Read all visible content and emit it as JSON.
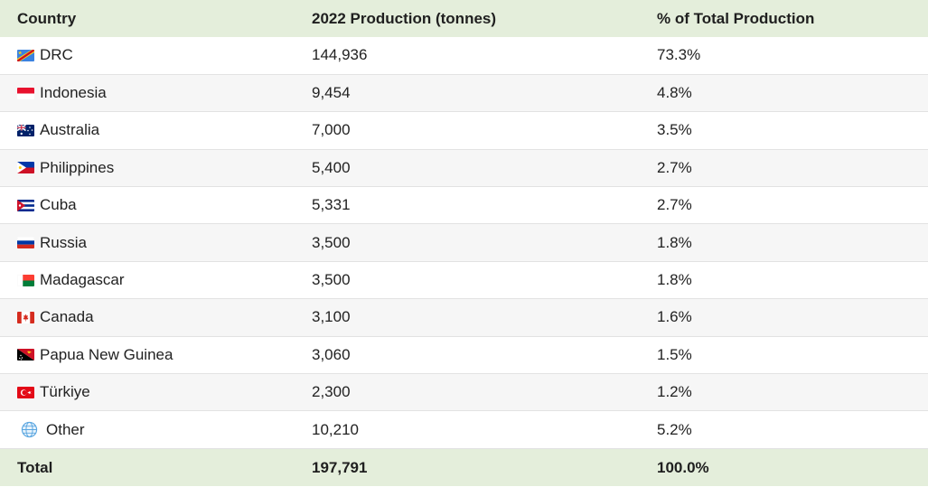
{
  "columns": {
    "country": "Country",
    "production": "2022 Production (tonnes)",
    "share": "% of Total Production"
  },
  "rows": [
    {
      "country": "DRC",
      "flag_icon": "drc-flag-icon",
      "production": "144,936",
      "share": "73.3%"
    },
    {
      "country": "Indonesia",
      "flag_icon": "indonesia-flag-icon",
      "production": "9,454",
      "share": "4.8%"
    },
    {
      "country": "Australia",
      "flag_icon": "australia-flag-icon",
      "production": "7,000",
      "share": "3.5%"
    },
    {
      "country": "Philippines",
      "flag_icon": "philippines-flag-icon",
      "production": "5,400",
      "share": "2.7%"
    },
    {
      "country": "Cuba",
      "flag_icon": "cuba-flag-icon",
      "production": "5,331",
      "share": "2.7%"
    },
    {
      "country": "Russia",
      "flag_icon": "russia-flag-icon",
      "production": "3,500",
      "share": "1.8%"
    },
    {
      "country": "Madagascar",
      "flag_icon": "madagascar-flag-icon",
      "production": "3,500",
      "share": "1.8%"
    },
    {
      "country": "Canada",
      "flag_icon": "canada-flag-icon",
      "production": "3,100",
      "share": "1.6%"
    },
    {
      "country": "Papua New Guinea",
      "flag_icon": "papua-new-guinea-flag-icon",
      "production": "3,060",
      "share": "1.5%"
    },
    {
      "country": "Türkiye",
      "flag_icon": "turkiye-flag-icon",
      "production": "2,300",
      "share": "1.2%"
    },
    {
      "country": "Other",
      "flag_icon": "globe-icon",
      "production": "10,210",
      "share": "5.2%"
    }
  ],
  "total": {
    "label": "Total",
    "production": "197,791",
    "share": "100.0%"
  },
  "colors": {
    "header_bg": "#e4eedb",
    "alt_row_bg": "#f6f6f6"
  }
}
